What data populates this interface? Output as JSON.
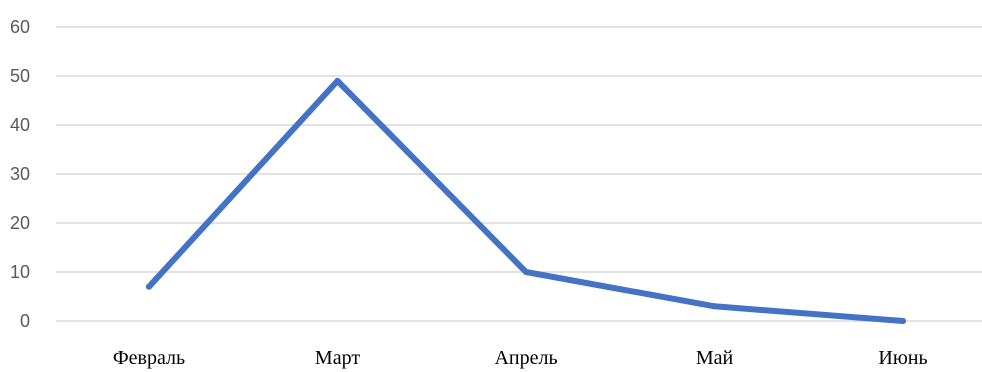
{
  "chart_data": {
    "type": "line",
    "categories": [
      "Февраль",
      "Март",
      "Апрель",
      "Май",
      "Июнь"
    ],
    "series": [
      {
        "values": [
          7,
          49,
          10,
          3,
          0
        ]
      }
    ],
    "ylim": [
      0,
      60
    ],
    "yticks": [
      0,
      10,
      20,
      30,
      40,
      50,
      60
    ],
    "grid": true,
    "legend": "none",
    "colors": {
      "series": "#4472c4",
      "grid": "#d9d9d9",
      "ytick": "#595959",
      "xtick": "#000000"
    }
  }
}
